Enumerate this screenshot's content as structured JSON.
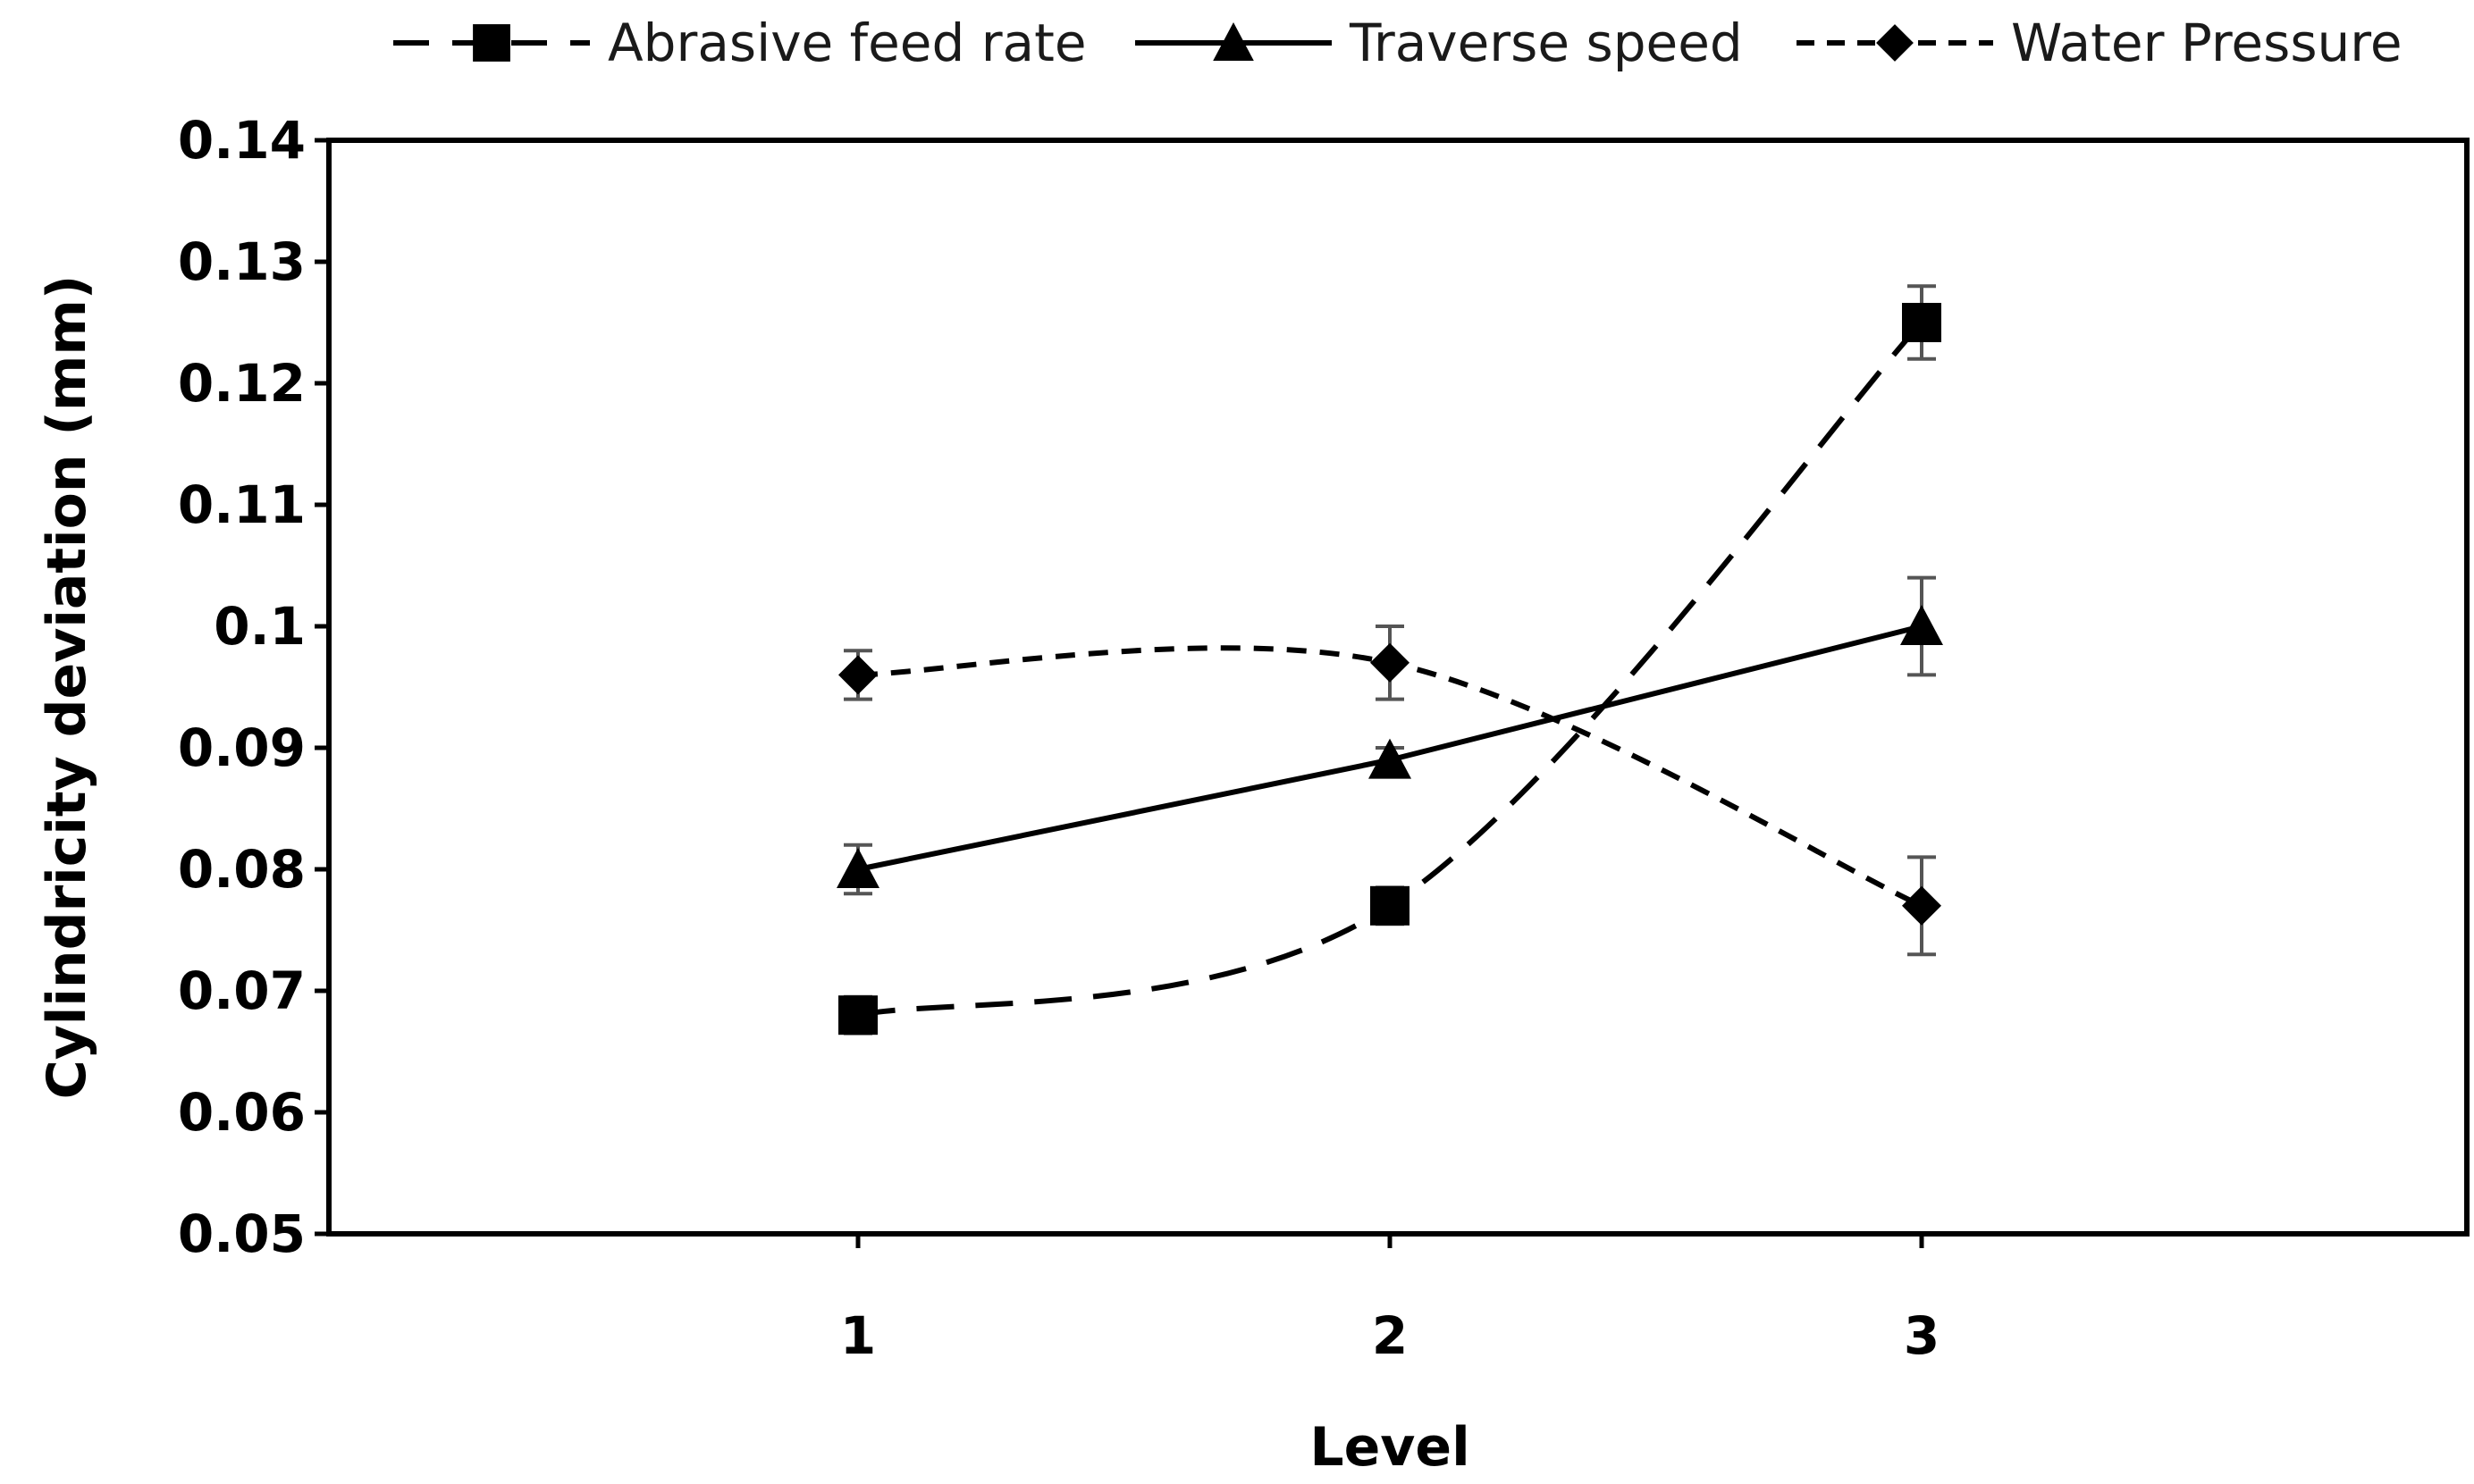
{
  "chart_data": {
    "type": "line",
    "title": "",
    "xlabel": "Level",
    "ylabel": "Cylindricity deviation (mm)",
    "categories": [
      "1",
      "2",
      "3"
    ],
    "ylim": [
      0.05,
      0.14
    ],
    "yticks": [
      "0.05",
      "0.06",
      "0.07",
      "0.08",
      "0.09",
      "0.1",
      "0.11",
      "0.12",
      "0.13",
      "0.14"
    ],
    "grid": false,
    "legend_position": "top",
    "series": [
      {
        "name": "Abrasive feed rate",
        "values": [
          0.068,
          0.077,
          0.125
        ],
        "errors": [
          0.0015,
          0.0015,
          0.003
        ],
        "marker": "square",
        "line": "long-dash",
        "smooth": true
      },
      {
        "name": "Traverse speed",
        "values": [
          0.08,
          0.089,
          0.1
        ],
        "errors": [
          0.002,
          0.001,
          0.004
        ],
        "marker": "triangle",
        "line": "solid",
        "smooth": false
      },
      {
        "name": "Water Pressure",
        "values": [
          0.096,
          0.097,
          0.077
        ],
        "errors": [
          0.002,
          0.003,
          0.004
        ],
        "marker": "diamond",
        "line": "short-dash",
        "smooth": true
      }
    ],
    "colors": {
      "line": "#000000",
      "error_bar": "#555555"
    }
  }
}
